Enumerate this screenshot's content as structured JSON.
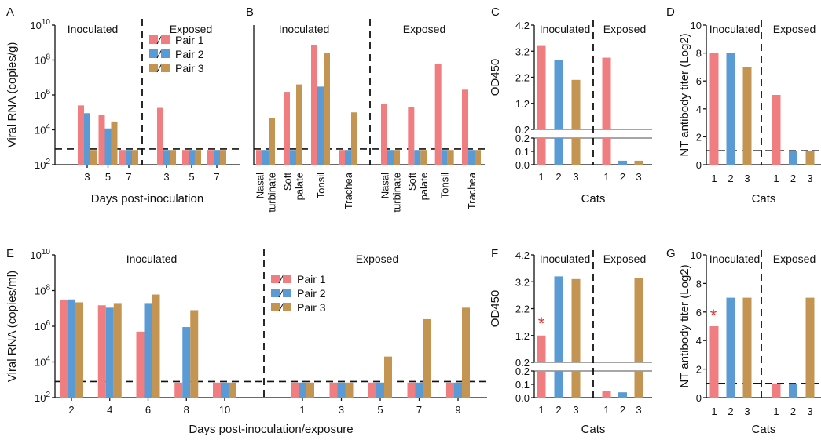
{
  "colors": {
    "pair_1": "#f07d80",
    "pair_2": "#5b9bd5",
    "pair_3": "#c49552"
  },
  "panels": [
    {
      "id": "A",
      "label": "A",
      "kind": "logday",
      "groups": [
        "Inoculated",
        "Exposed"
      ],
      "ylabel": "Viral RNA (copies/g)",
      "xlabel": "Days post-inoculation",
      "yticks": [
        "10^2",
        "10^4",
        "10^6",
        "10^8",
        "10^10"
      ],
      "cats": [
        [
          "3",
          "5",
          "7"
        ],
        [
          "3",
          "5",
          "7"
        ]
      ],
      "legend": [
        "Pair 1",
        "Pair 2",
        "Pair 3"
      ]
    },
    {
      "id": "B",
      "label": "B",
      "kind": "tissue",
      "groups": [
        "Inoculated",
        "Exposed"
      ],
      "cats": [
        [
          "Nasal turbinate",
          "Soft palate",
          "Tonsil",
          "Trachea"
        ],
        [
          "Nasal turbinate",
          "Soft palate",
          "Tonsil",
          "Trachea"
        ]
      ]
    },
    {
      "id": "C",
      "label": "C",
      "kind": "od",
      "groups": [
        "Inoculated",
        "Exposed"
      ],
      "ylabel": "OD450",
      "xlabel": "Cats",
      "yticks_top": [
        "0.2",
        "1.2",
        "2.2",
        "3.2",
        "4.2"
      ],
      "yticks_bot": [
        "0.0",
        "0.1",
        "0.2"
      ],
      "cats": [
        "1",
        "2",
        "3"
      ]
    },
    {
      "id": "D",
      "label": "D",
      "kind": "nt",
      "groups": [
        "Inoculated",
        "Exposed"
      ],
      "ylabel": "NT antibody titer (Log2)",
      "xlabel": "Cats",
      "yticks": [
        "0",
        "2",
        "4",
        "6",
        "8",
        "10"
      ],
      "cats": [
        "1",
        "2",
        "3"
      ]
    },
    {
      "id": "E",
      "label": "E",
      "kind": "logday",
      "groups": [
        "Inoculated",
        "Exposed"
      ],
      "ylabel": "Viral RNA (copies/ml)",
      "xlabel": "Days post-inoculation/exposure",
      "yticks": [
        "10^2",
        "10^4",
        "10^6",
        "10^8",
        "10^10"
      ],
      "cats": [
        [
          "2",
          "4",
          "6",
          "8",
          "10"
        ],
        [
          "1",
          "3",
          "5",
          "7",
          "9"
        ]
      ],
      "legend": [
        "Pair 1",
        "Pair 2",
        "Pair 3"
      ]
    },
    {
      "id": "F",
      "label": "F",
      "kind": "od",
      "groups": [
        "Inoculated",
        "Exposed"
      ],
      "ylabel": "OD450",
      "xlabel": "Cats",
      "yticks_top": [
        "0.2",
        "1.2",
        "2.2",
        "3.2",
        "4.2"
      ],
      "yticks_bot": [
        "0.0",
        "0.1",
        "0.2"
      ],
      "cats": [
        "1",
        "2",
        "3"
      ],
      "star": "*"
    },
    {
      "id": "G",
      "label": "G",
      "kind": "nt",
      "groups": [
        "Inoculated",
        "Exposed"
      ],
      "ylabel": "NT antibody titer (Log2)",
      "xlabel": "Cats",
      "yticks": [
        "0",
        "2",
        "4",
        "6",
        "8",
        "10"
      ],
      "cats": [
        "1",
        "2",
        "3"
      ],
      "star": "*"
    }
  ],
  "chart_data": [
    {
      "panel": "A",
      "type": "bar",
      "yscale": "log",
      "ylim": [
        100,
        10000000000.0
      ],
      "threshold": 800,
      "groups": [
        {
          "name": "Inoculated",
          "x": [
            "3",
            "5",
            "7"
          ],
          "series": [
            {
              "name": "Pair 1",
              "values": [
                250000,
                70000,
                700
              ]
            },
            {
              "name": "Pair 2",
              "values": [
                90000,
                12000,
                700
              ]
            },
            {
              "name": "Pair 3",
              "values": [
                700,
                30000,
                700
              ]
            }
          ]
        },
        {
          "name": "Exposed",
          "x": [
            "3",
            "5",
            "7"
          ],
          "series": [
            {
              "name": "Pair 1",
              "values": [
                180000,
                700,
                700
              ]
            },
            {
              "name": "Pair 2",
              "values": [
                700,
                700,
                700
              ]
            },
            {
              "name": "Pair 3",
              "values": [
                700,
                700,
                700
              ]
            }
          ]
        }
      ]
    },
    {
      "panel": "B",
      "type": "bar",
      "yscale": "log",
      "ylim": [
        100,
        10000000000.0
      ],
      "threshold": 800,
      "groups": [
        {
          "name": "Inoculated",
          "x": [
            "Nasal turbinate",
            "Soft palate",
            "Tonsil",
            "Trachea"
          ],
          "series": [
            {
              "name": "Pair 1",
              "values": [
                700,
                1500000,
                700000000,
                700
              ]
            },
            {
              "name": "Pair 2",
              "values": [
                700,
                700,
                3000000,
                700
              ]
            },
            {
              "name": "Pair 3",
              "values": [
                50000,
                4000000,
                250000000,
                100000
              ]
            }
          ]
        },
        {
          "name": "Exposed",
          "x": [
            "Nasal turbinate",
            "Soft palate",
            "Tonsil",
            "Trachea"
          ],
          "series": [
            {
              "name": "Pair 1",
              "values": [
                300000,
                200000,
                60000000,
                2000000
              ]
            },
            {
              "name": "Pair 2",
              "values": [
                700,
                700,
                700,
                700
              ]
            },
            {
              "name": "Pair 3",
              "values": [
                700,
                700,
                700,
                700
              ]
            }
          ]
        }
      ]
    },
    {
      "panel": "C",
      "type": "bar",
      "ylim": [
        0,
        4.2
      ],
      "axis_break": [
        0.2,
        0.25
      ],
      "groups": [
        {
          "name": "Inoculated",
          "x": [
            "1",
            "2",
            "3"
          ],
          "values": [
            3.4,
            2.85,
            2.1
          ]
        },
        {
          "name": "Exposed",
          "x": [
            "1",
            "2",
            "3"
          ],
          "values": [
            2.95,
            0.03,
            0.03
          ]
        }
      ]
    },
    {
      "panel": "D",
      "type": "bar",
      "ylim": [
        0,
        10
      ],
      "threshold": 1,
      "groups": [
        {
          "name": "Inoculated",
          "x": [
            "1",
            "2",
            "3"
          ],
          "values": [
            8,
            8,
            7
          ]
        },
        {
          "name": "Exposed",
          "x": [
            "1",
            "2",
            "3"
          ],
          "values": [
            5,
            1,
            1
          ]
        }
      ]
    },
    {
      "panel": "E",
      "type": "bar",
      "yscale": "log",
      "ylim": [
        100,
        10000000000.0
      ],
      "threshold": 800,
      "groups": [
        {
          "name": "Inoculated",
          "x": [
            "2",
            "4",
            "6",
            "8",
            "10"
          ],
          "series": [
            {
              "name": "Pair 1",
              "values": [
                30000000,
                15000000,
                500000,
                700,
                700
              ]
            },
            {
              "name": "Pair 2",
              "values": [
                32000000,
                11000000,
                20000000,
                900000,
                700
              ]
            },
            {
              "name": "Pair 3",
              "values": [
                22000000,
                20000000,
                60000000,
                8000000,
                700
              ]
            }
          ]
        },
        {
          "name": "Exposed",
          "x": [
            "1",
            "3",
            "5",
            "7",
            "9"
          ],
          "series": [
            {
              "name": "Pair 1",
              "values": [
                700,
                700,
                700,
                700,
                700
              ]
            },
            {
              "name": "Pair 2",
              "values": [
                700,
                700,
                700,
                700,
                700
              ]
            },
            {
              "name": "Pair 3",
              "values": [
                700,
                700,
                20000,
                2500000,
                11000000
              ]
            }
          ]
        }
      ]
    },
    {
      "panel": "F",
      "type": "bar",
      "ylim": [
        0,
        4.2
      ],
      "axis_break": [
        0.2,
        0.25
      ],
      "groups": [
        {
          "name": "Inoculated",
          "x": [
            "1",
            "2",
            "3"
          ],
          "values": [
            1.2,
            3.4,
            3.3
          ]
        },
        {
          "name": "Exposed",
          "x": [
            "1",
            "2",
            "3"
          ],
          "values": [
            0.05,
            0.04,
            3.35
          ]
        }
      ]
    },
    {
      "panel": "G",
      "type": "bar",
      "ylim": [
        0,
        10
      ],
      "threshold": 1,
      "groups": [
        {
          "name": "Inoculated",
          "x": [
            "1",
            "2",
            "3"
          ],
          "values": [
            5,
            7,
            7
          ]
        },
        {
          "name": "Exposed",
          "x": [
            "1",
            "2",
            "3"
          ],
          "values": [
            1,
            1,
            7
          ]
        }
      ]
    }
  ]
}
